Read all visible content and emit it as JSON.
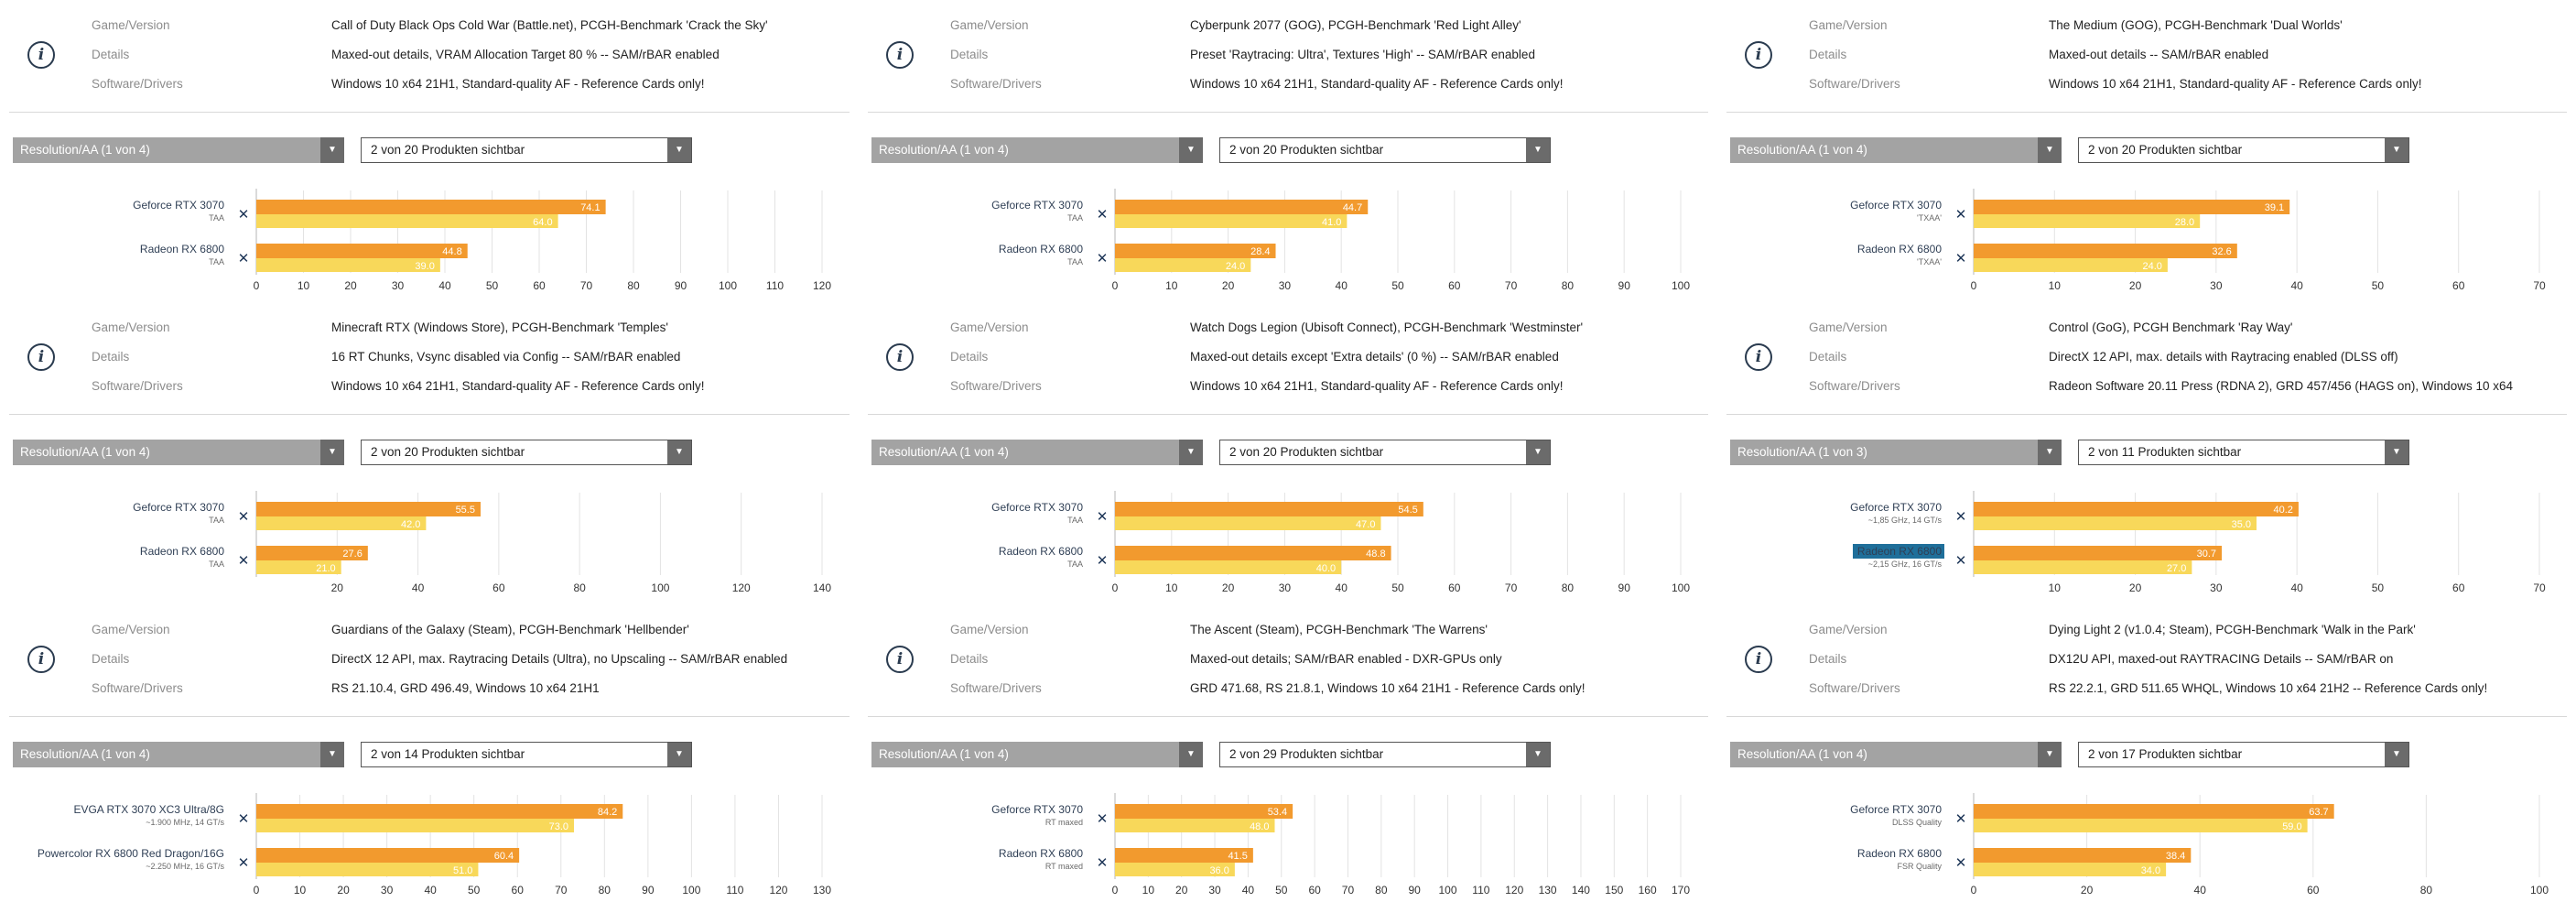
{
  "labels": {
    "game": "Game/Version",
    "details": "Details",
    "software": "Software/Drivers"
  },
  "icons": {
    "info": "info-icon",
    "remove": "close-icon",
    "dropdown": "chevron-down-icon"
  },
  "colors": {
    "bar_avg": "#f29a2e",
    "bar_min": "#f8d85a",
    "highlight": "#1f6f9a"
  },
  "panels": [
    {
      "game": "Call of Duty Black Ops Cold War (Battle.net), PCGH-Benchmark 'Crack the Sky'",
      "details": "Maxed-out details, VRAM Allocation Target 80 % -- SAM/rBAR enabled",
      "software": "Windows 10 x64 21H1, Standard-quality AF - Reference Cards only!",
      "resolution_select": "Resolution/AA (1 von 4)",
      "products_select": "2 von 20 Produkten sichtbar",
      "chart_data": {
        "type": "bar",
        "ylim": [
          0,
          120
        ],
        "ticks": [
          0,
          10,
          20,
          30,
          40,
          50,
          60,
          70,
          80,
          90,
          100,
          110,
          120
        ],
        "tick_labels": [
          "0",
          "10",
          "20",
          "30",
          "40",
          "50",
          "60",
          "70",
          "80",
          "90",
          "100",
          "110",
          "120"
        ],
        "series": [
          {
            "name": "Geforce RTX 3070",
            "sub": "TAA",
            "highlight": false,
            "avg": 74.1,
            "min": 64.0,
            "avg_label": "74.1",
            "min_label": "64.0"
          },
          {
            "name": "Radeon RX 6800",
            "sub": "TAA",
            "highlight": false,
            "avg": 44.8,
            "min": 39.0,
            "avg_label": "44.8",
            "min_label": "39.0"
          }
        ]
      }
    },
    {
      "game": "Cyberpunk 2077 (GOG), PCGH-Benchmark 'Red Light Alley'",
      "details": "Preset 'Raytracing: Ultra', Textures 'High' -- SAM/rBAR enabled",
      "software": "Windows 10 x64 21H1, Standard-quality AF - Reference Cards only!",
      "resolution_select": "Resolution/AA (1 von 4)",
      "products_select": "2 von 20 Produkten sichtbar",
      "chart_data": {
        "type": "bar",
        "ylim": [
          0,
          100
        ],
        "ticks": [
          0,
          10,
          20,
          30,
          40,
          50,
          60,
          70,
          80,
          90,
          100
        ],
        "tick_labels": [
          "0",
          "10",
          "20",
          "30",
          "40",
          "50",
          "60",
          "70",
          "80",
          "90",
          "100"
        ],
        "series": [
          {
            "name": "Geforce RTX 3070",
            "sub": "TAA",
            "highlight": false,
            "avg": 44.7,
            "min": 41.0,
            "avg_label": "44.7",
            "min_label": "41.0"
          },
          {
            "name": "Radeon RX 6800",
            "sub": "TAA",
            "highlight": false,
            "avg": 28.4,
            "min": 24.0,
            "avg_label": "28.4",
            "min_label": "24.0"
          }
        ]
      }
    },
    {
      "game": "The Medium (GOG), PCGH-Benchmark 'Dual Worlds'",
      "details": "Maxed-out details -- SAM/rBAR enabled",
      "software": "Windows 10 x64 21H1, Standard-quality AF - Reference Cards only!",
      "resolution_select": "Resolution/AA (1 von 4)",
      "products_select": "2 von 20 Produkten sichtbar",
      "chart_data": {
        "type": "bar",
        "ylim": [
          0,
          70
        ],
        "ticks": [
          0,
          10,
          20,
          30,
          40,
          50,
          60,
          70
        ],
        "tick_labels": [
          "0",
          "10",
          "20",
          "30",
          "40",
          "50",
          "60",
          "70"
        ],
        "series": [
          {
            "name": "Geforce RTX 3070",
            "sub": "'TXAA'",
            "highlight": false,
            "avg": 39.1,
            "min": 28.0,
            "avg_label": "39.1",
            "min_label": "28.0"
          },
          {
            "name": "Radeon RX 6800",
            "sub": "'TXAA'",
            "highlight": false,
            "avg": 32.6,
            "min": 24.0,
            "avg_label": "32.6",
            "min_label": "24.0"
          }
        ]
      }
    },
    {
      "game": "Minecraft RTX (Windows Store), PCGH-Benchmark 'Temples'",
      "details": "16 RT Chunks, Vsync disabled via Config -- SAM/rBAR enabled",
      "software": "Windows 10 x64 21H1, Standard-quality AF - Reference Cards only!",
      "resolution_select": "Resolution/AA (1 von 4)",
      "products_select": "2 von 20 Produkten sichtbar",
      "chart_data": {
        "type": "bar",
        "ylim": [
          0,
          140
        ],
        "ticks": [
          20,
          40,
          60,
          80,
          100,
          120,
          140
        ],
        "tick_labels": [
          "20",
          "40",
          "60",
          "80",
          "100",
          "120",
          "140"
        ],
        "series": [
          {
            "name": "Geforce RTX 3070",
            "sub": "TAA",
            "highlight": false,
            "avg": 55.5,
            "min": 42.0,
            "avg_label": "55.5",
            "min_label": "42.0"
          },
          {
            "name": "Radeon RX 6800",
            "sub": "TAA",
            "highlight": false,
            "avg": 27.6,
            "min": 21.0,
            "avg_label": "27.6",
            "min_label": "21.0"
          }
        ]
      }
    },
    {
      "game": "Watch Dogs Legion (Ubisoft Connect), PCGH-Benchmark 'Westminster'",
      "details": "Maxed-out details except 'Extra details' (0 %) -- SAM/rBAR enabled",
      "software": "Windows 10 x64 21H1, Standard-quality AF - Reference Cards only!",
      "resolution_select": "Resolution/AA (1 von 4)",
      "products_select": "2 von 20 Produkten sichtbar",
      "chart_data": {
        "type": "bar",
        "ylim": [
          0,
          100
        ],
        "ticks": [
          0,
          10,
          20,
          30,
          40,
          50,
          60,
          70,
          80,
          90,
          100
        ],
        "tick_labels": [
          "0",
          "10",
          "20",
          "30",
          "40",
          "50",
          "60",
          "70",
          "80",
          "90",
          "100"
        ],
        "series": [
          {
            "name": "Geforce RTX 3070",
            "sub": "TAA",
            "highlight": false,
            "avg": 54.5,
            "min": 47.0,
            "avg_label": "54.5",
            "min_label": "47.0"
          },
          {
            "name": "Radeon RX 6800",
            "sub": "TAA",
            "highlight": false,
            "avg": 48.8,
            "min": 40.0,
            "avg_label": "48.8",
            "min_label": "40.0"
          }
        ]
      }
    },
    {
      "game": "Control (GoG), PCGH Benchmark 'Ray Way'",
      "details": "DirectX 12 API, max. details with Raytracing enabled (DLSS off)",
      "software": "Radeon Software 20.11 Press (RDNA 2), GRD 457/456 (HAGS on), Windows 10 x64",
      "resolution_select": "Resolution/AA (1 von 3)",
      "products_select": "2 von 11 Produkten sichtbar",
      "chart_data": {
        "type": "bar",
        "ylim": [
          0,
          70
        ],
        "ticks": [
          10,
          20,
          30,
          40,
          50,
          60,
          70
        ],
        "tick_labels": [
          "10",
          "20",
          "30",
          "40",
          "50",
          "60",
          "70"
        ],
        "series": [
          {
            "name": "Geforce RTX 3070",
            "sub": "~1,85 GHz, 14 GT/s",
            "highlight": false,
            "avg": 40.2,
            "min": 35.0,
            "avg_label": "40.2",
            "min_label": "35.0"
          },
          {
            "name": "Radeon RX 6800",
            "sub": "~2,15 GHz, 16 GT/s",
            "highlight": true,
            "avg": 30.7,
            "min": 27.0,
            "avg_label": "30.7",
            "min_label": "27.0"
          }
        ]
      }
    },
    {
      "game": "Guardians of the Galaxy (Steam), PCGH-Benchmark 'Hellbender'",
      "details": "DirectX 12 API, max. Raytracing Details (Ultra), no Upscaling -- SAM/rBAR enabled",
      "software": "RS 21.10.4, GRD 496.49, Windows 10 x64 21H1",
      "resolution_select": "Resolution/AA (1 von 4)",
      "products_select": "2 von 14 Produkten sichtbar",
      "chart_data": {
        "type": "bar",
        "ylim": [
          0,
          130
        ],
        "ticks": [
          0,
          10,
          20,
          30,
          40,
          50,
          60,
          70,
          80,
          90,
          100,
          110,
          120,
          130
        ],
        "tick_labels": [
          "0",
          "10",
          "20",
          "30",
          "40",
          "50",
          "60",
          "70",
          "80",
          "90",
          "100",
          "110",
          "120",
          "130"
        ],
        "series": [
          {
            "name": "EVGA RTX 3070 XC3 Ultra/8G",
            "sub": "~1.900 MHz, 14 GT/s",
            "highlight": false,
            "avg": 84.2,
            "min": 73.0,
            "avg_label": "84.2",
            "min_label": "73.0"
          },
          {
            "name": "Powercolor RX 6800 Red Dragon/16G",
            "sub": "~2.250 MHz, 16 GT/s",
            "highlight": false,
            "avg": 60.4,
            "min": 51.0,
            "avg_label": "60.4",
            "min_label": "51.0"
          }
        ]
      }
    },
    {
      "game": "The Ascent (Steam), PCGH-Benchmark 'The Warrens'",
      "details": "Maxed-out details; SAM/rBAR enabled - DXR-GPUs only",
      "software": "GRD 471.68, RS 21.8.1, Windows 10 x64 21H1 - Reference Cards only!",
      "resolution_select": "Resolution/AA (1 von 4)",
      "products_select": "2 von 29 Produkten sichtbar",
      "chart_data": {
        "type": "bar",
        "ylim": [
          0,
          170
        ],
        "ticks": [
          0,
          10,
          20,
          30,
          40,
          50,
          60,
          70,
          80,
          90,
          100,
          110,
          120,
          130,
          140,
          150,
          160,
          170
        ],
        "tick_labels": [
          "0",
          "10",
          "20",
          "30",
          "40",
          "50",
          "60",
          "70",
          "80",
          "90",
          "100",
          "110",
          "120",
          "130",
          "140",
          "150",
          "160",
          "170"
        ],
        "series": [
          {
            "name": "Geforce RTX 3070",
            "sub": "RT maxed",
            "highlight": false,
            "avg": 53.4,
            "min": 48.0,
            "avg_label": "53.4",
            "min_label": "48.0"
          },
          {
            "name": "Radeon RX 6800",
            "sub": "RT maxed",
            "highlight": false,
            "avg": 41.5,
            "min": 36.0,
            "avg_label": "41.5",
            "min_label": "36.0"
          }
        ]
      }
    },
    {
      "game": "Dying Light 2 (v1.0.4; Steam), PCGH-Benchmark 'Walk in the Park'",
      "details": "DX12U API, maxed-out RAYTRACING Details -- SAM/rBAR on",
      "software": "RS 22.2.1, GRD 511.65 WHQL, Windows 10 x64 21H2 -- Reference Cards only!",
      "resolution_select": "Resolution/AA (1 von 4)",
      "products_select": "2 von 17 Produkten sichtbar",
      "chart_data": {
        "type": "bar",
        "ylim": [
          0,
          100
        ],
        "ticks": [
          0,
          20,
          40,
          60,
          80,
          100
        ],
        "tick_labels": [
          "0",
          "20",
          "40",
          "60",
          "80",
          "100"
        ],
        "series": [
          {
            "name": "Geforce RTX 3070",
            "sub": "DLSS Quality",
            "highlight": false,
            "avg": 63.7,
            "min": 59.0,
            "avg_label": "63.7",
            "min_label": "59.0"
          },
          {
            "name": "Radeon RX 6800",
            "sub": "FSR Quality",
            "highlight": false,
            "avg": 38.4,
            "min": 34.0,
            "avg_label": "38.4",
            "min_label": "34.0"
          }
        ]
      }
    }
  ]
}
